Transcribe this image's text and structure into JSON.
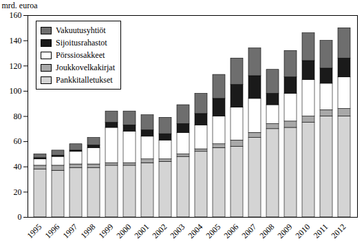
{
  "chart_data": {
    "type": "bar",
    "stacked": true,
    "ylabel": "mrd. euroa",
    "categories": [
      "1995",
      "1996",
      "1997",
      "1998",
      "1999",
      "2000",
      "2001",
      "2002",
      "2003",
      "2004",
      "2005",
      "2006",
      "2007",
      "2008",
      "2009",
      "2010",
      "2011",
      "2012"
    ],
    "series": [
      {
        "name": "Pankkitalletukset",
        "color": "#d4d4d4",
        "values": [
          38,
          37,
          39,
          39,
          41,
          41,
          43,
          44,
          48,
          52,
          55,
          56,
          63,
          70,
          71,
          75,
          80,
          80
        ]
      },
      {
        "name": "Joukkovelkakirjat",
        "color": "#a8a8a8",
        "values": [
          3,
          4,
          3,
          3,
          2,
          2,
          3,
          2,
          2,
          2,
          3,
          5,
          4,
          4,
          5,
          5,
          5,
          6
        ]
      },
      {
        "name": "Pörssiosakkeet",
        "color": "#ffffff",
        "values": [
          5,
          7,
          10,
          13,
          28,
          25,
          18,
          15,
          17,
          19,
          22,
          26,
          27,
          15,
          22,
          29,
          21,
          25
        ]
      },
      {
        "name": "Sijoitusrahastot",
        "color": "#1a1a1a",
        "values": [
          1,
          1,
          1,
          2,
          4,
          5,
          5,
          5,
          7,
          9,
          14,
          18,
          18,
          9,
          13,
          15,
          12,
          15
        ]
      },
      {
        "name": "Vakuutusyhtiöt",
        "color": "#6e6e6e",
        "values": [
          3,
          4,
          5,
          6,
          9,
          11,
          12,
          13,
          15,
          16,
          19,
          21,
          22,
          19,
          21,
          22,
          22,
          24
        ]
      }
    ],
    "ylim": [
      0,
      160
    ],
    "yticks": [
      0,
      20,
      40,
      60,
      80,
      100,
      120,
      140,
      160
    ],
    "legend": "top-left",
    "grid": false
  }
}
